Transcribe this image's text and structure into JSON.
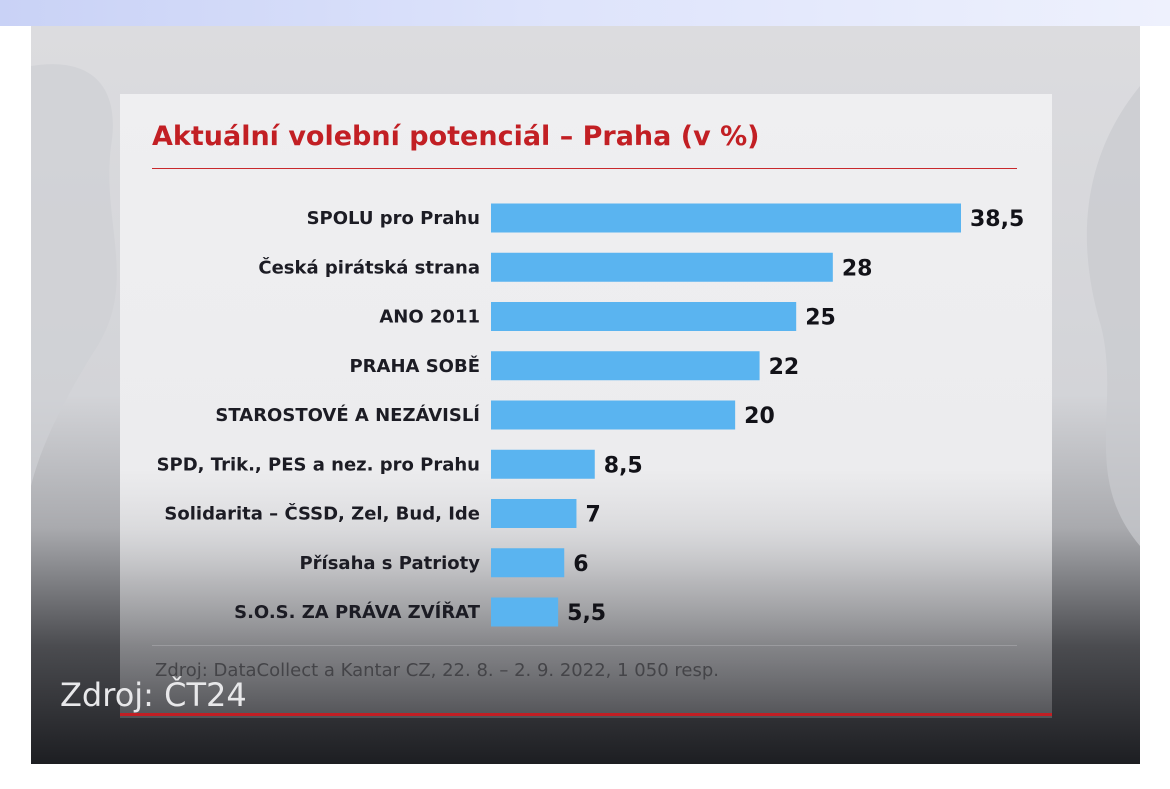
{
  "source_line": "Zdroj: DataCollect a Kantar CZ, 22. 8. – 2. 9. 2022, 1 050 resp.",
  "watermark": "Zdroj: ČT24",
  "colors": {
    "bar": "#5ab4f0",
    "title": "#c21f24"
  },
  "chart_data": {
    "type": "bar",
    "orientation": "horizontal",
    "title": "Aktuální volební potenciál – Praha  (v %)",
    "categories": [
      "SPOLU pro Prahu",
      "Česká pirátská strana",
      "ANO 2011",
      "PRAHA SOBĚ",
      "STAROSTOVÉ A NEZÁVISLÍ",
      "SPD, Trik., PES a nez. pro Prahu",
      "Solidarita – ČSSD, Zel, Bud, Ide",
      "Přísaha s Patrioty",
      "S.O.S. ZA PRÁVA ZVÍŘAT"
    ],
    "values": [
      38.5,
      28,
      25,
      22,
      20,
      8.5,
      7,
      6,
      5.5
    ],
    "value_labels": [
      "38,5",
      "28",
      "25",
      "22",
      "20",
      "8,5",
      "7",
      "6",
      "5,5"
    ],
    "xlim": [
      0,
      38.5
    ],
    "grid": false,
    "legend": "none"
  }
}
